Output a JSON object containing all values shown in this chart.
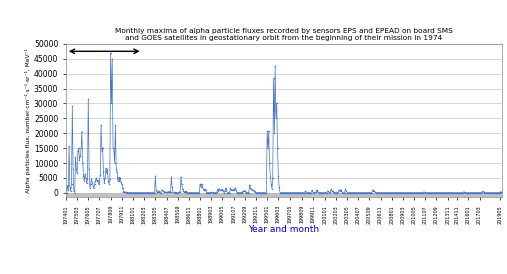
{
  "title_line1": "Monthly maxima of alpha particle fluxes recorded by sensors EPS and EPEAD on board SMS",
  "title_line2": "and GOES satellites in geostationary orbit from the beginning of their mission in 1974",
  "ylabel": "Alpha particles flux, number·cm⁻²·s⁻¹·sr⁻¹, MeV⁻¹",
  "xlabel": "Year and month",
  "ylim": [
    -1500,
    50000
  ],
  "yticks": [
    0,
    5000,
    10000,
    15000,
    20000,
    25000,
    30000,
    35000,
    40000,
    45000,
    50000
  ],
  "line_color": "#4472C4",
  "background_color": "#ffffff",
  "gray_band_color": "#c0c0c0",
  "series": {
    "197401": 0,
    "197402": 100,
    "197403": 2500,
    "197404": 800,
    "197405": 15700,
    "197406": 2000,
    "197407": 600,
    "197408": 3000,
    "197409": 29000,
    "197410": 8000,
    "197411": 500,
    "197412": 100,
    "197501": 12000,
    "197502": 8000,
    "197503": 6500,
    "197504": 14000,
    "197505": 15000,
    "197506": 11000,
    "197507": 12500,
    "197508": 15000,
    "197509": 20500,
    "197510": 10000,
    "197511": 5800,
    "197512": 4000,
    "197601": 6300,
    "197602": 5000,
    "197603": 3200,
    "197604": 4500,
    "197605": 31500,
    "197606": 8000,
    "197607": 1500,
    "197608": 3000,
    "197609": 4800,
    "197610": 3500,
    "197611": 2400,
    "197612": 1500,
    "197701": 3000,
    "197702": 4000,
    "197703": 5000,
    "197704": 3800,
    "197705": 4200,
    "197706": 3000,
    "197707": 3500,
    "197708": 6000,
    "197709": 22700,
    "197710": 14000,
    "197711": 15200,
    "197712": 7000,
    "197801": 3300,
    "197802": 5000,
    "197803": 8200,
    "197804": 6500,
    "197805": 7900,
    "197806": 4000,
    "197807": 3000,
    "197808": 4500,
    "197809": 47000,
    "197810": 30000,
    "197811": 45000,
    "197812": 15000,
    "197901": 14900,
    "197902": 10000,
    "197903": 22700,
    "197904": 8000,
    "197905": 7000,
    "197906": 4000,
    "197907": 5200,
    "197908": 4000,
    "197909": 5100,
    "197910": 3500,
    "197911": 2900,
    "197912": 1500,
    "198001": 400,
    "198002": 300,
    "198003": 300,
    "198004": 200,
    "198005": 200,
    "198006": 100,
    "198007": 100,
    "198008": 100,
    "198009": 100,
    "198010": 100,
    "198011": 100,
    "198012": 100,
    "198101": 100,
    "198102": 100,
    "198103": 100,
    "198104": 100,
    "198105": 100,
    "198106": 100,
    "198107": 100,
    "198108": 100,
    "198109": 100,
    "198110": 100,
    "198111": 100,
    "198112": 100,
    "198201": 100,
    "198202": 100,
    "198203": 100,
    "198204": 100,
    "198205": 100,
    "198206": 100,
    "198207": 100,
    "198208": 100,
    "198209": 100,
    "198210": 100,
    "198211": 100,
    "198212": 100,
    "198301": 100,
    "198302": 100,
    "198303": 100,
    "198304": 100,
    "198305": 5700,
    "198306": 1000,
    "198307": 200,
    "198308": 400,
    "198309": 700,
    "198310": 300,
    "198311": 100,
    "198312": 100,
    "198401": 1000,
    "198402": 700,
    "198403": 600,
    "198404": 400,
    "198405": 300,
    "198406": 200,
    "198407": 200,
    "198408": 200,
    "198409": 300,
    "198410": 350,
    "198411": 400,
    "198412": 200,
    "198501": 5400,
    "198502": 2000,
    "198503": 200,
    "198504": 150,
    "198505": 200,
    "198506": 100,
    "198507": 100,
    "198508": 100,
    "198509": 100,
    "198510": 200,
    "198511": 300,
    "198512": 200,
    "198601": 5300,
    "198602": 3000,
    "198603": 1200,
    "198604": 600,
    "198605": 300,
    "198606": 400,
    "198607": 500,
    "198608": 300,
    "198609": 100,
    "198610": 100,
    "198611": 100,
    "198612": 100,
    "198701": 100,
    "198702": 100,
    "198703": 100,
    "198704": 100,
    "198705": 100,
    "198706": 100,
    "198707": 100,
    "198708": 100,
    "198709": 100,
    "198710": 100,
    "198711": 100,
    "198712": 100,
    "198801": 3000,
    "198802": 2000,
    "198803": 2900,
    "198804": 1800,
    "198805": 1300,
    "198806": 1000,
    "198807": 1200,
    "198808": 800,
    "198809": 100,
    "198810": 100,
    "198811": 100,
    "198812": 100,
    "198901": 100,
    "198902": 100,
    "198903": 200,
    "198904": 150,
    "198905": 100,
    "198906": 100,
    "198907": 100,
    "198908": 100,
    "198909": 100,
    "198910": 200,
    "198911": 1200,
    "198912": 500,
    "199001": 1300,
    "199002": 900,
    "199003": 800,
    "199004": 1000,
    "199005": 1200,
    "199006": 600,
    "199007": 100,
    "199008": 500,
    "199009": 1600,
    "199010": 800,
    "199011": 100,
    "199012": 100,
    "199101": 100,
    "199102": 100,
    "199103": 1700,
    "199104": 1000,
    "199105": 1000,
    "199106": 800,
    "199107": 1100,
    "199108": 1200,
    "199109": 1600,
    "199110": 800,
    "199111": 100,
    "199112": 100,
    "199201": 100,
    "199202": 100,
    "199203": 100,
    "199204": 100,
    "199205": 100,
    "199206": 200,
    "199207": 700,
    "199208": 500,
    "199209": 700,
    "199210": 300,
    "199211": 100,
    "199212": 100,
    "199301": 100,
    "199302": 100,
    "199303": 2700,
    "199304": 1500,
    "199305": 1300,
    "199306": 900,
    "199307": 1000,
    "199308": 700,
    "199309": 700,
    "199310": 400,
    "199311": 100,
    "199312": 100,
    "199401": 100,
    "199402": 100,
    "199403": 100,
    "199404": 100,
    "199405": 100,
    "199406": 100,
    "199407": 100,
    "199408": 100,
    "199409": 100,
    "199410": 100,
    "199411": 100,
    "199412": 100,
    "199501": 20800,
    "199502": 15000,
    "199503": 20700,
    "199504": 10000,
    "199505": 5200,
    "199506": 3000,
    "199507": 1400,
    "199508": 5000,
    "199509": 38400,
    "199510": 20000,
    "199511": 42500,
    "199512": 25000,
    "199601": 30200,
    "199602": 15000,
    "199603": 5700,
    "199604": 2000,
    "199605": 100,
    "199606": 100,
    "199607": 100,
    "199608": 100,
    "199609": 100,
    "199610": 100,
    "199611": 100,
    "199612": 100,
    "199701": 100,
    "199702": 100,
    "199703": 100,
    "199704": 100,
    "199705": 100,
    "199706": 100,
    "199707": 100,
    "199708": 100,
    "199709": 100,
    "199710": 100,
    "199711": 100,
    "199712": 100,
    "199801": 100,
    "199802": 100,
    "199803": 100,
    "199804": 100,
    "199805": 100,
    "199806": 100,
    "199807": 100,
    "199808": 100,
    "199809": 100,
    "199810": 100,
    "199811": 100,
    "199812": 100,
    "199901": 700,
    "199902": 300,
    "199903": 100,
    "199904": 100,
    "199905": 100,
    "199906": 100,
    "199907": 100,
    "199908": 100,
    "199909": 800,
    "199910": 400,
    "199911": 100,
    "199912": 100,
    "200001": 200,
    "200002": 150,
    "200003": 1000,
    "200004": 600,
    "200005": 200,
    "200006": 100,
    "200007": 100,
    "200008": 100,
    "200009": 100,
    "200010": 100,
    "200011": 100,
    "200012": 100,
    "200101": 200,
    "200102": 150,
    "200103": 100,
    "200104": 100,
    "200105": 600,
    "200106": 300,
    "200107": 100,
    "200108": 200,
    "200109": 1200,
    "200110": 700,
    "200111": 600,
    "200112": 200,
    "200201": 100,
    "200202": 100,
    "200203": 100,
    "200204": 100,
    "200205": 100,
    "200206": 200,
    "200207": 1000,
    "200208": 600,
    "200209": 1100,
    "200210": 500,
    "200211": 100,
    "200212": 100,
    "200301": 100,
    "200302": 100,
    "200303": 1200,
    "200304": 600,
    "200305": 100,
    "200306": 100,
    "200307": 100,
    "200308": 100,
    "200309": 100,
    "200310": 100,
    "200311": 100,
    "200312": 100,
    "200401": 100,
    "200402": 100,
    "200403": 100,
    "200404": 100,
    "200405": 100,
    "200406": 100,
    "200407": 100,
    "200408": 100,
    "200409": 100,
    "200410": 100,
    "200411": 100,
    "200412": 100,
    "200501": 100,
    "200502": 100,
    "200503": 100,
    "200504": 100,
    "200505": 100,
    "200506": 100,
    "200507": 100,
    "200508": 100,
    "200509": 100,
    "200510": 100,
    "200511": 100,
    "200512": 100,
    "200601": 1000,
    "200602": 700,
    "200603": 600,
    "200604": 300,
    "200605": 100,
    "200606": 100,
    "200607": 100,
    "200608": 100,
    "200609": 100,
    "200610": 100,
    "200611": 100,
    "200612": 100,
    "200701": 100,
    "200702": 100,
    "200703": 100,
    "200704": 100,
    "200705": 100,
    "200706": 100,
    "200707": 100,
    "200708": 100,
    "200709": 100,
    "200710": 100,
    "200711": 100,
    "200712": 100,
    "200801": 100,
    "200802": 100,
    "200803": 100,
    "200804": 100,
    "200805": 100,
    "200806": 100,
    "200807": 100,
    "200808": 100,
    "200809": 100,
    "200810": 100,
    "200811": 100,
    "200812": 100,
    "200901": 100,
    "200902": 100,
    "200903": 100,
    "200904": 100,
    "200905": 100,
    "200906": 100,
    "200907": 100,
    "200908": 100,
    "200909": 100,
    "200910": 100,
    "200911": 100,
    "200912": 100,
    "201001": 100,
    "201002": 100,
    "201003": 100,
    "201004": 100,
    "201005": 100,
    "201006": 100,
    "201007": 100,
    "201008": 100,
    "201009": 100,
    "201010": 100,
    "201011": 100,
    "201012": 100,
    "201101": 100,
    "201102": 100,
    "201103": 100,
    "201104": 100,
    "201105": 300,
    "201106": 200,
    "201107": 100,
    "201108": 100,
    "201109": 100,
    "201110": 100,
    "201111": 100,
    "201112": 100,
    "201201": 100,
    "201202": 100,
    "201203": 100,
    "201204": 100,
    "201205": 100,
    "201206": 100,
    "201207": 100,
    "201208": 100,
    "201209": 100,
    "201210": 100,
    "201211": 100,
    "201212": 100,
    "201301": 100,
    "201302": 100,
    "201303": 100,
    "201304": 100,
    "201305": 100,
    "201306": 100,
    "201307": 100,
    "201308": 100,
    "201309": 100,
    "201310": 100,
    "201311": 100,
    "201312": 100,
    "201401": 100,
    "201402": 100,
    "201403": 100,
    "201404": 100,
    "201405": 100,
    "201406": 100,
    "201407": 100,
    "201408": 100,
    "201409": 100,
    "201410": 100,
    "201411": 100,
    "201412": 100,
    "201501": 100,
    "201502": 100,
    "201503": 100,
    "201504": 100,
    "201505": 100,
    "201506": 100,
    "201507": 300,
    "201508": 200,
    "201509": 100,
    "201510": 100,
    "201511": 100,
    "201512": 100,
    "201601": 100,
    "201602": 100,
    "201603": 100,
    "201604": 100,
    "201605": 100,
    "201606": 100,
    "201607": 100,
    "201608": 100,
    "201609": 100,
    "201610": 100,
    "201611": 100,
    "201612": 100,
    "201701": 100,
    "201702": 100,
    "201703": 100,
    "201704": 100,
    "201705": 100,
    "201706": 200,
    "201707": 500,
    "201708": 300,
    "201709": 100,
    "201710": 100,
    "201711": 100,
    "201712": 100,
    "201801": 100,
    "201802": 100,
    "201803": 100,
    "201804": 100,
    "201805": 100,
    "201806": 100,
    "201807": 100,
    "201808": 100,
    "201809": 100,
    "201810": 100,
    "201811": 100,
    "201812": 100,
    "201901": 100,
    "201902": 100,
    "201903": 100,
    "201904": 100,
    "201905": 400,
    "201906": 200,
    "201907": 200
  },
  "tick_labels": [
    "197401",
    "197503",
    "197605",
    "197707",
    "197809",
    "197911",
    "198101",
    "198203",
    "198305",
    "198407",
    "198509",
    "198611",
    "198801",
    "198903",
    "199005",
    "199107",
    "199209",
    "199311",
    "199501",
    "199603",
    "199705",
    "199809",
    "199911",
    "200101",
    "200203",
    "200305",
    "200407",
    "200509",
    "200611",
    "200801",
    "200903",
    "201005",
    "201107",
    "201209",
    "201311",
    "201411",
    "201601",
    "201703",
    "201905"
  ]
}
